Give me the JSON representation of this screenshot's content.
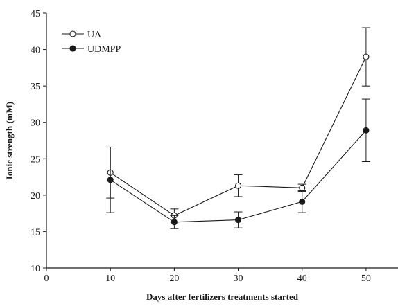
{
  "chart_data": {
    "type": "line",
    "title": "",
    "xlabel": "Days after fertilizers treatments started",
    "ylabel": "Ionic strength (mM)",
    "xlim": [
      0,
      55
    ],
    "ylim": [
      10,
      45
    ],
    "xticks": [
      0,
      10,
      20,
      30,
      40,
      50
    ],
    "yticks": [
      10,
      15,
      20,
      25,
      30,
      35,
      40,
      45
    ],
    "grid": false,
    "legend_position": "top-left",
    "x": [
      10,
      20,
      30,
      40,
      50
    ],
    "series": [
      {
        "name": "UA",
        "marker": "open-circle",
        "color": "#1a1a1a",
        "values": [
          23.1,
          17.2,
          21.3,
          21.0,
          39.0
        ],
        "error": [
          3.5,
          0.9,
          1.5,
          0.5,
          4.0
        ]
      },
      {
        "name": "UDMPP",
        "marker": "filled-circle",
        "color": "#1a1a1a",
        "values": [
          22.1,
          16.3,
          16.6,
          19.1,
          28.9
        ],
        "error": [
          4.5,
          0.9,
          1.1,
          1.5,
          4.3
        ]
      }
    ]
  }
}
